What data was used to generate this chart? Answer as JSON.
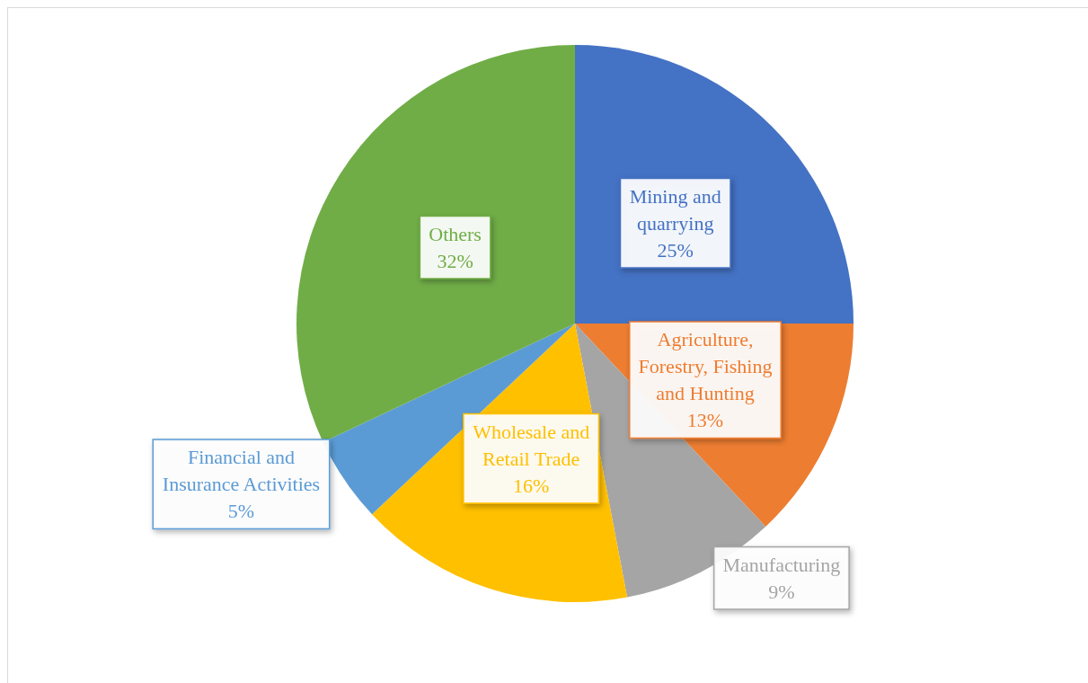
{
  "chart_data": {
    "type": "pie",
    "categories": [
      "Mining and quarrying",
      "Agriculture, Forestry, Fishing and Hunting",
      "Manufacturing",
      "Wholesale and Retail Trade",
      "Financial and Insurance Activities",
      "Others"
    ],
    "values": [
      25,
      13,
      9,
      16,
      5,
      32
    ],
    "colors": [
      "#4472c4",
      "#ed7d31",
      "#a5a5a5",
      "#ffc000",
      "#5b9bd5",
      "#70ad47"
    ],
    "value_labels": [
      "25%",
      "13%",
      "9%",
      "16%",
      "5%",
      "32%"
    ]
  }
}
